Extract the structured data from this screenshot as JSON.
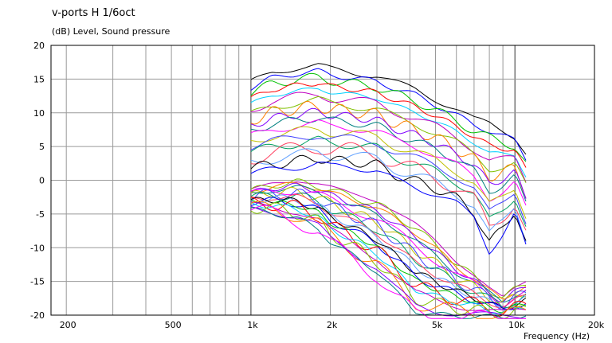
{
  "chart_data": {
    "type": "line",
    "title": "v-ports H 1/6oct",
    "subtitle": "(dB)  Level, Sound pressure",
    "xlabel": "Frequency  (Hz)",
    "xscale": "log",
    "xlim": [
      175,
      20000
    ],
    "ylim": [
      -20,
      20
    ],
    "grid": true,
    "legend": "none",
    "x_ticks": [
      {
        "value": 200,
        "label": "200"
      },
      {
        "value": 500,
        "label": "500"
      },
      {
        "value": 1000,
        "label": "1k"
      },
      {
        "value": 2000,
        "label": "2k"
      },
      {
        "value": 5000,
        "label": "5k"
      },
      {
        "value": 10000,
        "label": "10k"
      },
      {
        "value": 20000,
        "label": "20k"
      }
    ],
    "y_ticks": [
      20,
      15,
      10,
      5,
      0,
      -5,
      -10,
      -15,
      -20
    ],
    "colors": [
      "#000000",
      "#0000ff",
      "#00c000",
      "#ff0000",
      "#00d0ff",
      "#c000c0",
      "#80c000",
      "#ff8000",
      "#8000ff",
      "#008080",
      "#ff00ff",
      "#c0c000",
      "#4040ff",
      "#00a060",
      "#ff4060",
      "#60a0ff"
    ],
    "upper_family": {
      "count": 18,
      "x": [
        1000,
        1200,
        1500,
        1800,
        2000,
        2400,
        3000,
        3500,
        4200,
        5000,
        6000,
        7000,
        8000,
        9000,
        10000,
        11000
      ],
      "top_curve": [
        14.5,
        16.0,
        16.7,
        17.0,
        16.5,
        16.0,
        15.5,
        14.5,
        13.5,
        12.0,
        10.5,
        9.0,
        8.5,
        7.5,
        6.5,
        4.0
      ],
      "bottom_curve": [
        1.0,
        1.5,
        2.0,
        2.5,
        2.0,
        2.0,
        1.5,
        0.0,
        -1.0,
        -2.0,
        -3.5,
        -5.5,
        -10.5,
        -8.0,
        -5.0,
        -10.0
      ]
    },
    "lower_family": {
      "count": 22,
      "x": [
        1000,
        1200,
        1500,
        1800,
        2000,
        2400,
        3000,
        3500,
        4200,
        5000,
        6000,
        7000,
        8000,
        9000,
        10000,
        11000
      ],
      "top_curve": [
        -1.5,
        -0.5,
        0.0,
        -0.5,
        -1.0,
        -2.0,
        -3.0,
        -4.5,
        -6.5,
        -9.0,
        -12.0,
        -14.0,
        -16.0,
        -17.5,
        -16.0,
        -15.0
      ],
      "bottom_curve": [
        -4.5,
        -5.0,
        -6.0,
        -7.5,
        -9.5,
        -11.5,
        -14.0,
        -17.0,
        -20.0,
        -20.5,
        -20.5,
        -20.5,
        -20.5,
        -20.5,
        -20.5,
        -20.5
      ]
    }
  }
}
